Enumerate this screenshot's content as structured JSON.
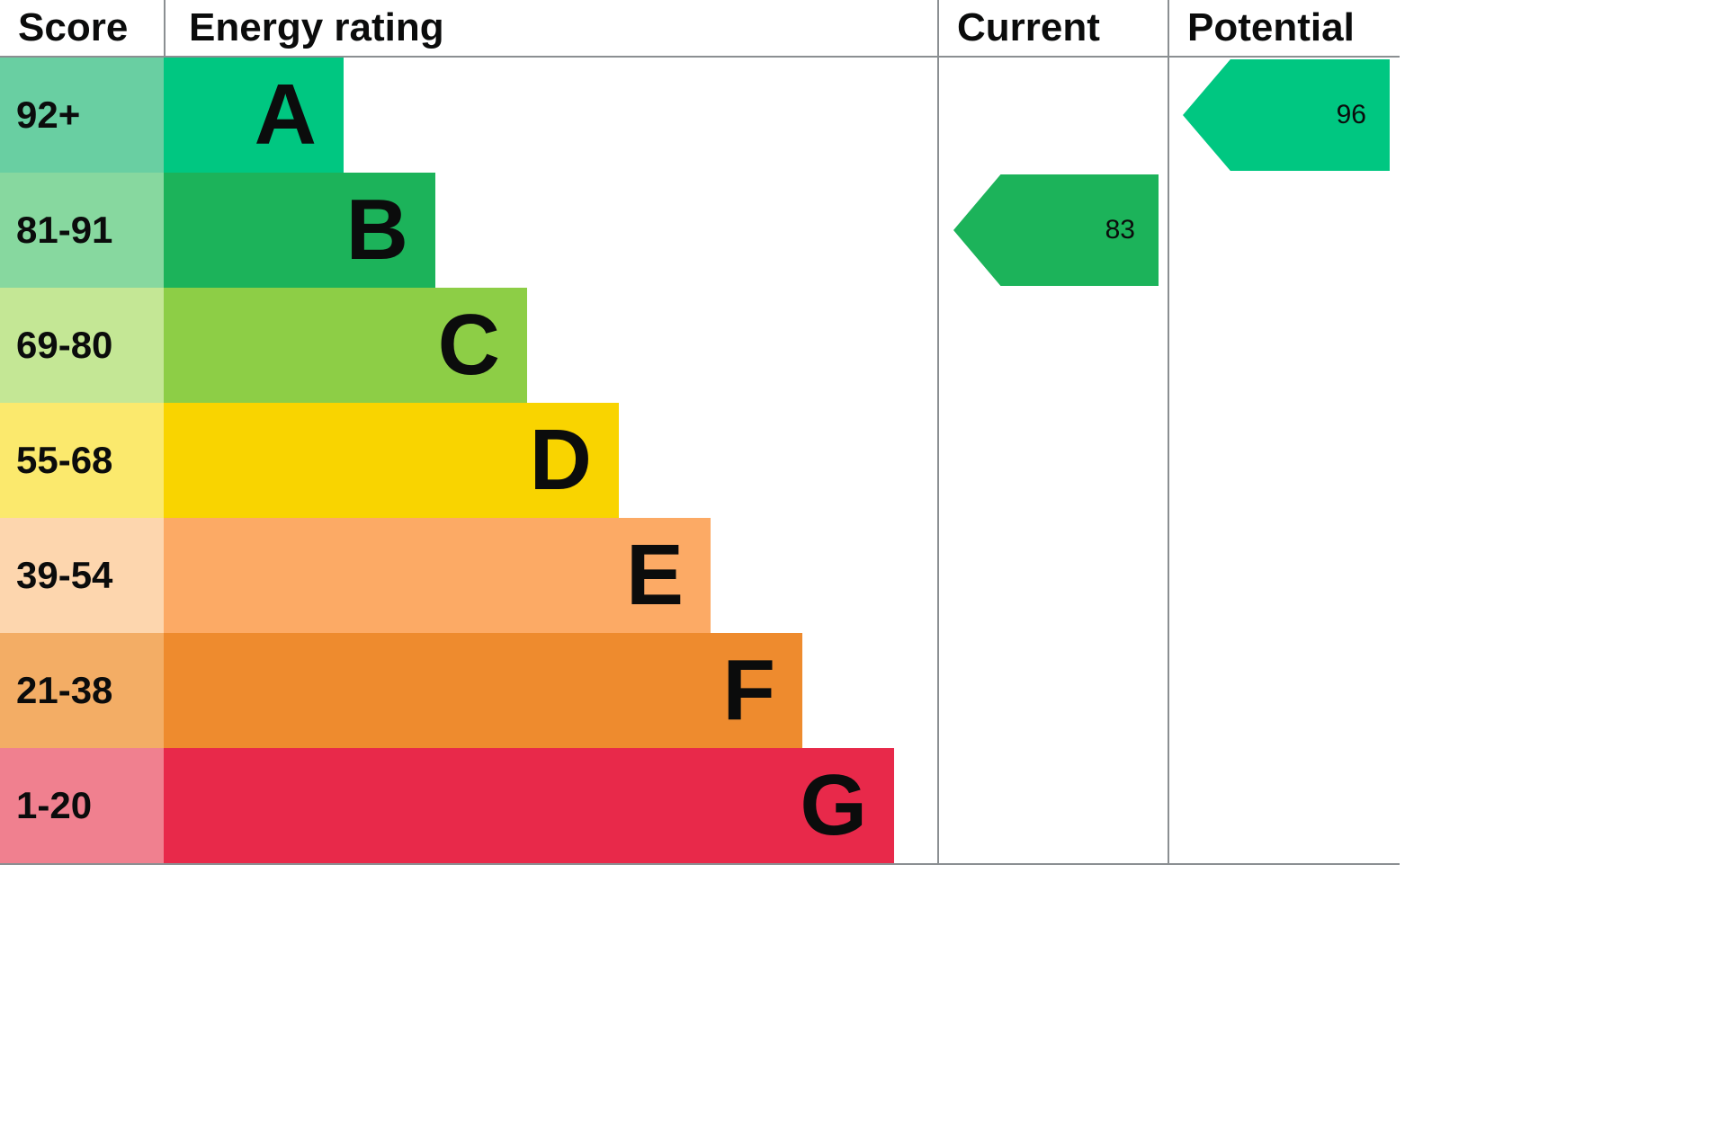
{
  "header": {
    "score": "Score",
    "energy_rating": "Energy rating",
    "current": "Current",
    "potential": "Potential"
  },
  "chart_data": {
    "type": "bar",
    "subtype": "epc-energy-rating-ladder",
    "title": "Energy rating",
    "columns": [
      "Score",
      "Energy rating",
      "Current",
      "Potential"
    ],
    "bands": [
      {
        "letter": "A",
        "score": "92+",
        "bar_color": "#00c781",
        "score_cell_color": "#69cfa2"
      },
      {
        "letter": "B",
        "score": "81-91",
        "bar_color": "#1cb35a",
        "score_cell_color": "#87d89f"
      },
      {
        "letter": "C",
        "score": "69-80",
        "bar_color": "#8dce46",
        "score_cell_color": "#c4e795"
      },
      {
        "letter": "D",
        "score": "55-68",
        "bar_color": "#f9d400",
        "score_cell_color": "#fbe96d"
      },
      {
        "letter": "E",
        "score": "39-54",
        "bar_color": "#fcaa65",
        "score_cell_color": "#fdd6ae"
      },
      {
        "letter": "F",
        "score": "21-38",
        "bar_color": "#ee8b2e",
        "score_cell_color": "#f3ad65"
      },
      {
        "letter": "G",
        "score": "1-20",
        "bar_color": "#e8294a",
        "score_cell_color": "#f0808f"
      }
    ],
    "current": {
      "value": "83",
      "band": "B",
      "arrow_color": "#1cb35a"
    },
    "potential": {
      "value": "96",
      "band": "A",
      "arrow_color": "#00c781"
    },
    "legend_position": "none",
    "grid": false
  }
}
